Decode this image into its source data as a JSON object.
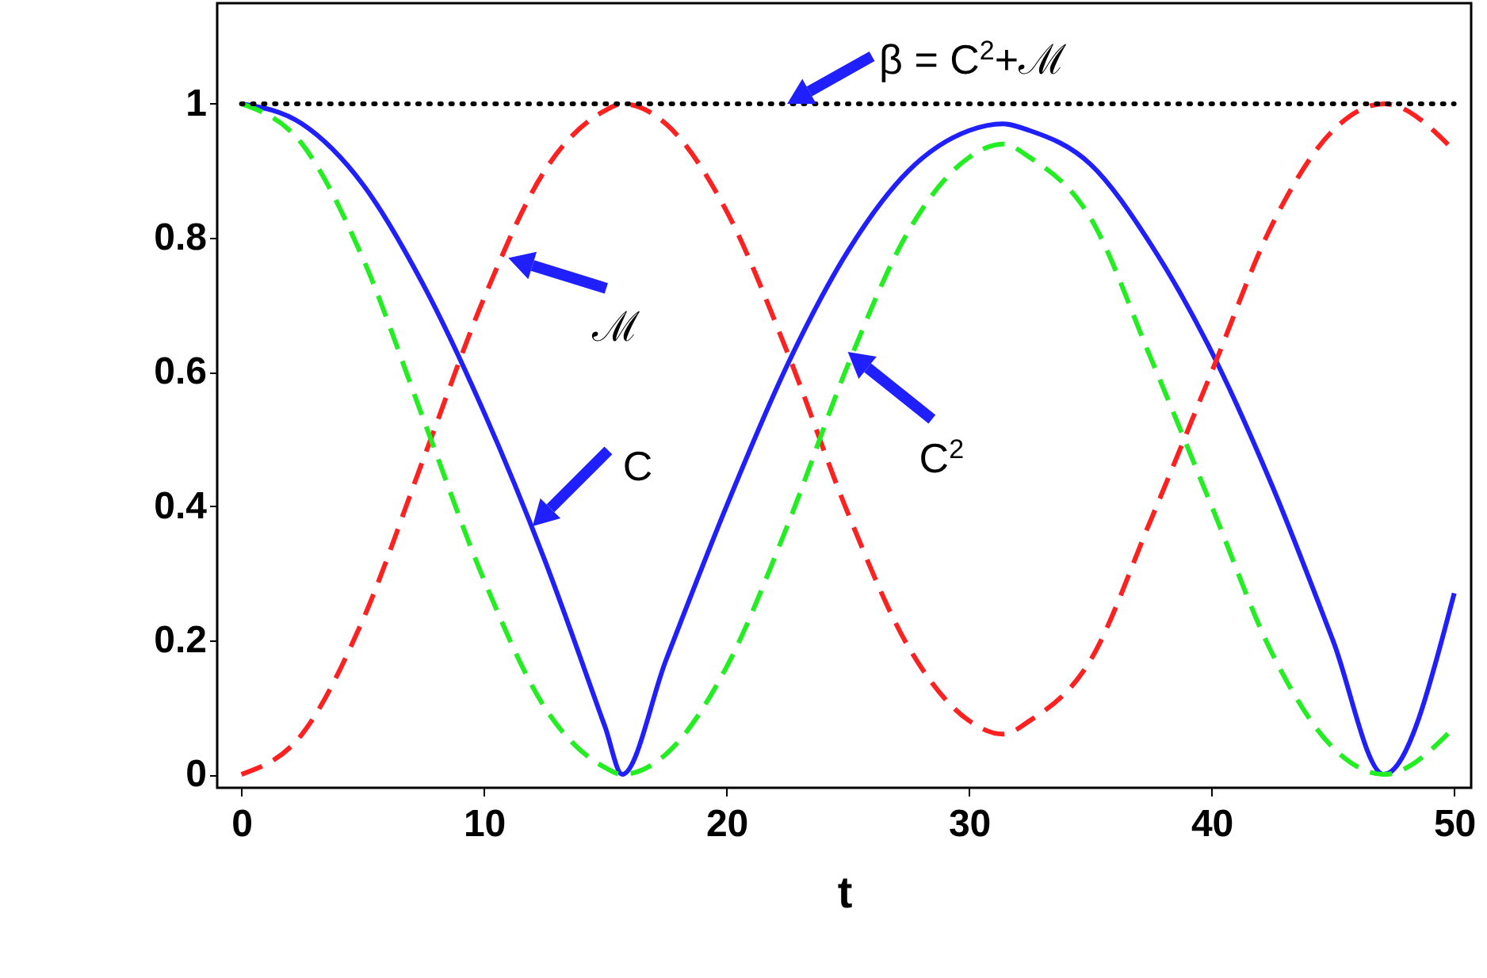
{
  "chart_data": {
    "type": "line",
    "xlabel": "t",
    "x": [
      0,
      2.5,
      5,
      7.5,
      10,
      12.5,
      15,
      15.7,
      17.5,
      20,
      22.5,
      25,
      27.5,
      30,
      31.4,
      32.5,
      35,
      37.5,
      40,
      42.5,
      45,
      47.1,
      50
    ],
    "series": [
      {
        "color": "#1f1fff",
        "line_style": "solid",
        "values": [
          1,
          0.97,
          0.88,
          0.73,
          0.54,
          0.32,
          0.07,
          0,
          0.17,
          0.4,
          0.61,
          0.78,
          0.9,
          0.96,
          0.97,
          0.96,
          0.91,
          0.79,
          0.63,
          0.43,
          0.2,
          0,
          0.27
        ]
      },
      {
        "color": "#ff2020",
        "line_style": "dashed",
        "values": [
          0,
          0.06,
          0.23,
          0.47,
          0.71,
          0.9,
          0.99,
          1,
          0.97,
          0.84,
          0.63,
          0.39,
          0.19,
          0.08,
          0.06,
          0.08,
          0.17,
          0.38,
          0.6,
          0.82,
          0.96,
          1,
          0.93
        ]
      },
      {
        "color": "#22ee22",
        "line_style": "dashed",
        "values": [
          1,
          0.94,
          0.77,
          0.53,
          0.29,
          0.1,
          0.01,
          0,
          0.03,
          0.16,
          0.37,
          0.61,
          0.81,
          0.92,
          0.94,
          0.92,
          0.83,
          0.62,
          0.4,
          0.18,
          0.04,
          0,
          0.07
        ]
      },
      {
        "color": "#000000",
        "line_style": "dotted",
        "values": [
          1,
          1,
          1,
          1,
          1,
          1,
          1,
          1,
          1,
          1,
          1,
          1,
          1,
          1,
          1,
          1,
          1,
          1,
          1,
          1,
          1,
          1,
          1
        ]
      }
    ],
    "annotations": [
      {
        "text": "β = C$^{2}$+ℳ",
        "x": 22.5,
        "y": 1
      },
      {
        "text": "ℳ",
        "x": 11,
        "y": 0.77
      },
      {
        "text": "C",
        "x": 12,
        "y": 0.37
      },
      {
        "text": "C$^{2}$",
        "x": 25,
        "y": 0.63
      }
    ],
    "xlim": [
      -1,
      50.7
    ],
    "ylim": [
      -0.02,
      1.15
    ],
    "xticks": [
      0,
      10,
      20,
      30,
      40,
      50
    ],
    "yticks": [
      0,
      0.2,
      0.4,
      0.6,
      0.8,
      1
    ],
    "grid": false
  }
}
